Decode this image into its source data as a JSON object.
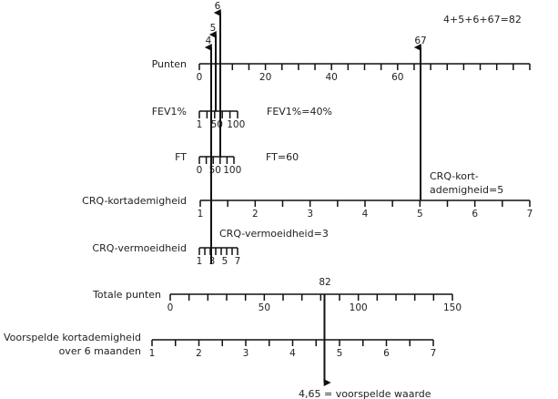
{
  "axes": [
    {
      "id": "punten",
      "label": "Punten",
      "min": 0,
      "max": 100,
      "tick_step": 5,
      "labels": [
        "0",
        "20",
        "40",
        "60"
      ],
      "label_values": [
        0,
        20,
        40,
        60
      ]
    },
    {
      "id": "fev1",
      "label": "FEV1%",
      "labels": [
        "1",
        "50",
        "100"
      ],
      "label_values": [
        0,
        5.5,
        11.5
      ],
      "minor_ticks": 5
    },
    {
      "id": "ft",
      "label": "FT",
      "labels": [
        "0",
        "50",
        "100"
      ],
      "label_values": [
        0,
        5,
        10.5
      ],
      "minor_ticks": 5
    },
    {
      "id": "crq_kort",
      "label": "CRQ-kortademigheid",
      "min": 1,
      "max": 7,
      "tick_step": 0.5,
      "labels": [
        "1",
        "2",
        "3",
        "4",
        "5",
        "6",
        "7"
      ],
      "label_values": [
        1,
        2,
        3,
        4,
        5,
        6,
        7
      ]
    },
    {
      "id": "crq_verm",
      "label": "CRQ-vermoeidheid",
      "labels": [
        "1",
        "3",
        "5",
        "7"
      ],
      "label_values": [
        1,
        3,
        5,
        7
      ],
      "minor_ticks": 7
    },
    {
      "id": "totaal",
      "label": "Totale punten",
      "min": 0,
      "max": 150,
      "tick_step": 10,
      "labels": [
        "0",
        "50",
        "100",
        "150"
      ],
      "label_values": [
        0,
        50,
        100,
        150
      ]
    },
    {
      "id": "voorspeld",
      "label_line1": "Voorspelde kortademigheid",
      "label_line2": "over 6 maanden",
      "min": 1,
      "max": 7,
      "tick_step": 0.5,
      "labels": [
        "1",
        "2",
        "3",
        "4",
        "5",
        "6",
        "7"
      ],
      "label_values": [
        1,
        2,
        3,
        4,
        5,
        6,
        7
      ]
    }
  ],
  "points": [
    {
      "source": "CRQ-vermoeidheid",
      "value": 3,
      "points": 4,
      "label": "4"
    },
    {
      "source": "FEV1%",
      "value": "40%",
      "points": 5,
      "label": "5"
    },
    {
      "source": "FT",
      "value": 60,
      "points": 6,
      "label": "6"
    },
    {
      "source": "CRQ-kortademigheid",
      "value": 5,
      "points": 67,
      "label": "67"
    }
  ],
  "annotations": {
    "sum": "4+5+6+67=82",
    "fev1": "FEV1%=40%",
    "ft": "FT=60",
    "crq_kort_line1": "CRQ-kort-",
    "crq_kort_line2": "ademigheid=5",
    "crq_verm": "CRQ-vermoeidheid=3",
    "total_label": "82",
    "total_value": 82,
    "predicted": "4,65 = voorspelde waarde",
    "predicted_value": 4.65
  }
}
